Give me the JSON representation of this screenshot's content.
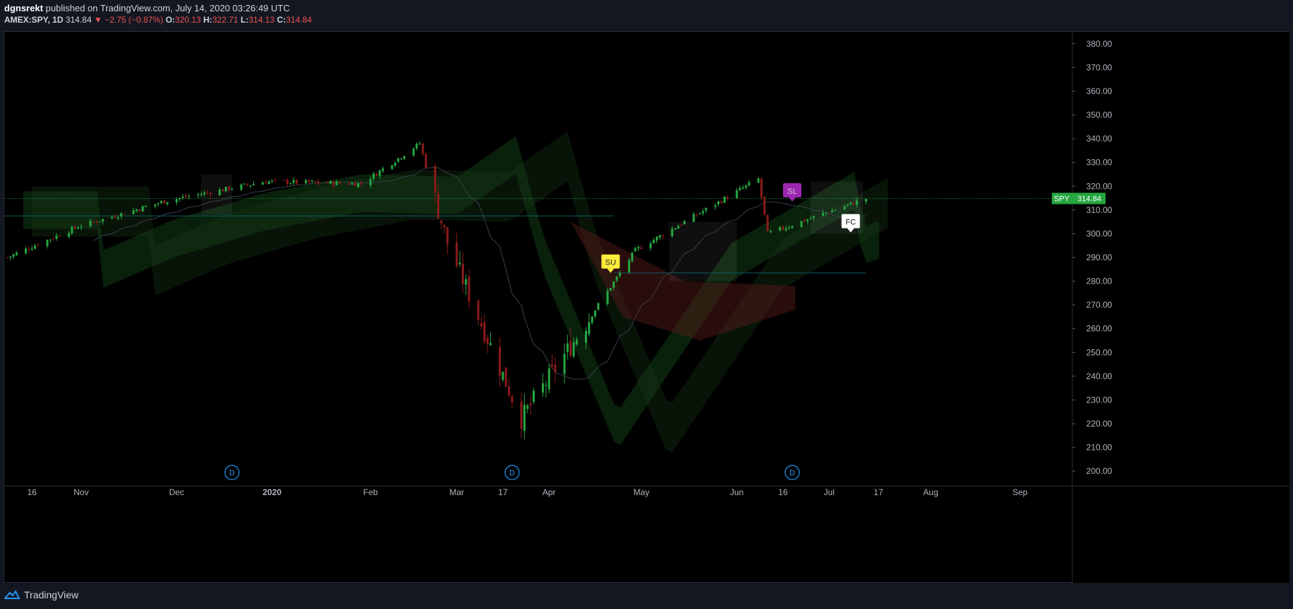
{
  "header": {
    "author": "dgnsrekt",
    "published_text": "published on TradingView.com, July 14, 2020 03:26:49 UTC",
    "symbol_line": "AMEX:SPY, 1D",
    "last": "314.84",
    "change": "−2.75 (−0.87%)",
    "open_label": "O:",
    "open": "320.13",
    "high_label": "H:",
    "high": "322.71",
    "low_label": "L:",
    "low": "314.13",
    "close_label": "C:",
    "close": "314.84"
  },
  "footer": {
    "brand": "TradingView"
  },
  "colors": {
    "up": "#26a641",
    "down": "#8b1a1a",
    "signal": "#ffeb3b",
    "price_line": "#26a641",
    "bg": "#000000"
  },
  "chart_data": {
    "type": "candlestick",
    "symbol": "SPY",
    "last_price": "314.84",
    "y_axis": {
      "min": 195,
      "max": 385,
      "ticks": [
        "380.00",
        "370.00",
        "360.00",
        "350.00",
        "340.00",
        "330.00",
        "320.00",
        "310.00",
        "300.00",
        "290.00",
        "280.00",
        "270.00",
        "260.00",
        "250.00",
        "240.00",
        "230.00",
        "220.00",
        "210.00",
        "200.00"
      ]
    },
    "x_axis": {
      "start": "2019-10-07",
      "end": "2020-09-18",
      "ticks": [
        {
          "label": "16",
          "date": "2019-10-16"
        },
        {
          "label": "Nov",
          "date": "2019-11-01"
        },
        {
          "label": "Dec",
          "date": "2019-12-02"
        },
        {
          "label": "2020",
          "date": "2020-01-02"
        },
        {
          "label": "Feb",
          "date": "2020-02-03"
        },
        {
          "label": "Mar",
          "date": "2020-03-02"
        },
        {
          "label": "17",
          "date": "2020-03-17"
        },
        {
          "label": "Apr",
          "date": "2020-04-01"
        },
        {
          "label": "May",
          "date": "2020-05-01"
        },
        {
          "label": "Jun",
          "date": "2020-06-01"
        },
        {
          "label": "16",
          "date": "2020-06-16"
        },
        {
          "label": "Jul",
          "date": "2020-07-01"
        },
        {
          "label": "17",
          "date": "2020-07-17"
        },
        {
          "label": "Aug",
          "date": "2020-08-03"
        },
        {
          "label": "Sep",
          "date": "2020-09-01"
        }
      ]
    },
    "key_points": [
      {
        "date": "2019-10-08",
        "close": 290
      },
      {
        "date": "2019-10-31",
        "close": 303
      },
      {
        "date": "2019-11-29",
        "close": 314
      },
      {
        "date": "2019-12-31",
        "close": 322
      },
      {
        "date": "2020-01-31",
        "close": 321
      },
      {
        "date": "2020-02-19",
        "close": 338
      },
      {
        "date": "2020-02-28",
        "close": 296
      },
      {
        "date": "2020-03-23",
        "close": 222
      },
      {
        "date": "2020-04-29",
        "close": 293
      },
      {
        "date": "2020-06-08",
        "close": 323
      },
      {
        "date": "2020-06-11",
        "close": 300
      },
      {
        "date": "2020-07-13",
        "close": 314.84
      }
    ],
    "markers": [
      {
        "label": "SU",
        "date": "2020-04-21",
        "price": 288,
        "color": "#ffeb3b"
      },
      {
        "label": "SL",
        "date": "2020-06-19",
        "price": 318,
        "color": "#9c27b0"
      },
      {
        "label": "FC",
        "date": "2020-07-08",
        "price": 305,
        "color": "#ffffff"
      }
    ],
    "event_badges": [
      {
        "label": "D",
        "date": "2019-12-20"
      },
      {
        "label": "D",
        "date": "2020-03-20"
      },
      {
        "label": "D",
        "date": "2020-06-19"
      }
    ]
  }
}
